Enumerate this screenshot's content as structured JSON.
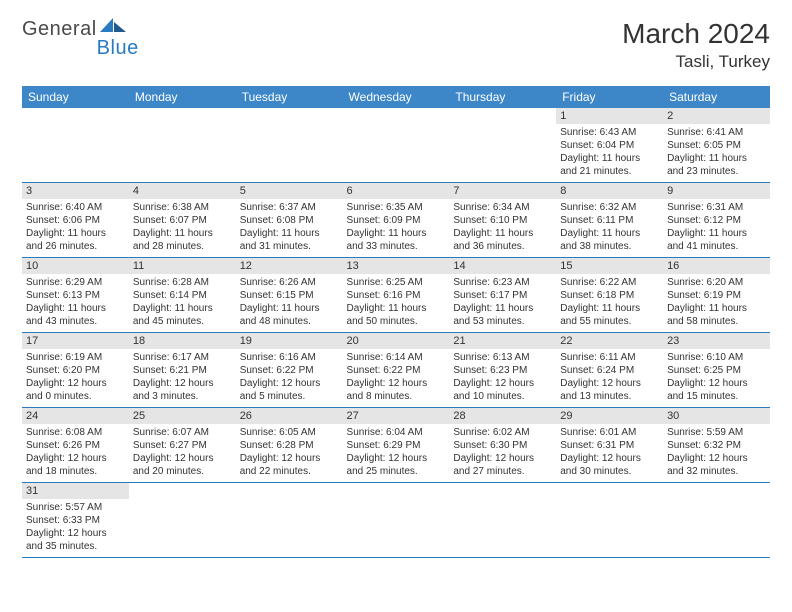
{
  "logo": {
    "part1": "General",
    "part2": "Blue"
  },
  "title": "March 2024",
  "location": "Tasli, Turkey",
  "colors": {
    "header_bg": "#3d87c9",
    "header_fg": "#ffffff",
    "daynum_bg": "#e5e5e5",
    "row_border": "#2a7ac0",
    "text": "#333333",
    "logo_gray": "#4a4a4a",
    "logo_blue": "#2a7ac0"
  },
  "typography": {
    "title_fontsize": 28,
    "location_fontsize": 17,
    "weekday_fontsize": 12,
    "daynum_fontsize": 11,
    "body_fontsize": 10
  },
  "layout": {
    "columns": 7,
    "rows": 6
  },
  "weekdays": [
    "Sunday",
    "Monday",
    "Tuesday",
    "Wednesday",
    "Thursday",
    "Friday",
    "Saturday"
  ],
  "weeks": [
    [
      null,
      null,
      null,
      null,
      null,
      {
        "n": "1",
        "sunrise": "Sunrise: 6:43 AM",
        "sunset": "Sunset: 6:04 PM",
        "day1": "Daylight: 11 hours",
        "day2": "and 21 minutes."
      },
      {
        "n": "2",
        "sunrise": "Sunrise: 6:41 AM",
        "sunset": "Sunset: 6:05 PM",
        "day1": "Daylight: 11 hours",
        "day2": "and 23 minutes."
      }
    ],
    [
      {
        "n": "3",
        "sunrise": "Sunrise: 6:40 AM",
        "sunset": "Sunset: 6:06 PM",
        "day1": "Daylight: 11 hours",
        "day2": "and 26 minutes."
      },
      {
        "n": "4",
        "sunrise": "Sunrise: 6:38 AM",
        "sunset": "Sunset: 6:07 PM",
        "day1": "Daylight: 11 hours",
        "day2": "and 28 minutes."
      },
      {
        "n": "5",
        "sunrise": "Sunrise: 6:37 AM",
        "sunset": "Sunset: 6:08 PM",
        "day1": "Daylight: 11 hours",
        "day2": "and 31 minutes."
      },
      {
        "n": "6",
        "sunrise": "Sunrise: 6:35 AM",
        "sunset": "Sunset: 6:09 PM",
        "day1": "Daylight: 11 hours",
        "day2": "and 33 minutes."
      },
      {
        "n": "7",
        "sunrise": "Sunrise: 6:34 AM",
        "sunset": "Sunset: 6:10 PM",
        "day1": "Daylight: 11 hours",
        "day2": "and 36 minutes."
      },
      {
        "n": "8",
        "sunrise": "Sunrise: 6:32 AM",
        "sunset": "Sunset: 6:11 PM",
        "day1": "Daylight: 11 hours",
        "day2": "and 38 minutes."
      },
      {
        "n": "9",
        "sunrise": "Sunrise: 6:31 AM",
        "sunset": "Sunset: 6:12 PM",
        "day1": "Daylight: 11 hours",
        "day2": "and 41 minutes."
      }
    ],
    [
      {
        "n": "10",
        "sunrise": "Sunrise: 6:29 AM",
        "sunset": "Sunset: 6:13 PM",
        "day1": "Daylight: 11 hours",
        "day2": "and 43 minutes."
      },
      {
        "n": "11",
        "sunrise": "Sunrise: 6:28 AM",
        "sunset": "Sunset: 6:14 PM",
        "day1": "Daylight: 11 hours",
        "day2": "and 45 minutes."
      },
      {
        "n": "12",
        "sunrise": "Sunrise: 6:26 AM",
        "sunset": "Sunset: 6:15 PM",
        "day1": "Daylight: 11 hours",
        "day2": "and 48 minutes."
      },
      {
        "n": "13",
        "sunrise": "Sunrise: 6:25 AM",
        "sunset": "Sunset: 6:16 PM",
        "day1": "Daylight: 11 hours",
        "day2": "and 50 minutes."
      },
      {
        "n": "14",
        "sunrise": "Sunrise: 6:23 AM",
        "sunset": "Sunset: 6:17 PM",
        "day1": "Daylight: 11 hours",
        "day2": "and 53 minutes."
      },
      {
        "n": "15",
        "sunrise": "Sunrise: 6:22 AM",
        "sunset": "Sunset: 6:18 PM",
        "day1": "Daylight: 11 hours",
        "day2": "and 55 minutes."
      },
      {
        "n": "16",
        "sunrise": "Sunrise: 6:20 AM",
        "sunset": "Sunset: 6:19 PM",
        "day1": "Daylight: 11 hours",
        "day2": "and 58 minutes."
      }
    ],
    [
      {
        "n": "17",
        "sunrise": "Sunrise: 6:19 AM",
        "sunset": "Sunset: 6:20 PM",
        "day1": "Daylight: 12 hours",
        "day2": "and 0 minutes."
      },
      {
        "n": "18",
        "sunrise": "Sunrise: 6:17 AM",
        "sunset": "Sunset: 6:21 PM",
        "day1": "Daylight: 12 hours",
        "day2": "and 3 minutes."
      },
      {
        "n": "19",
        "sunrise": "Sunrise: 6:16 AM",
        "sunset": "Sunset: 6:22 PM",
        "day1": "Daylight: 12 hours",
        "day2": "and 5 minutes."
      },
      {
        "n": "20",
        "sunrise": "Sunrise: 6:14 AM",
        "sunset": "Sunset: 6:22 PM",
        "day1": "Daylight: 12 hours",
        "day2": "and 8 minutes."
      },
      {
        "n": "21",
        "sunrise": "Sunrise: 6:13 AM",
        "sunset": "Sunset: 6:23 PM",
        "day1": "Daylight: 12 hours",
        "day2": "and 10 minutes."
      },
      {
        "n": "22",
        "sunrise": "Sunrise: 6:11 AM",
        "sunset": "Sunset: 6:24 PM",
        "day1": "Daylight: 12 hours",
        "day2": "and 13 minutes."
      },
      {
        "n": "23",
        "sunrise": "Sunrise: 6:10 AM",
        "sunset": "Sunset: 6:25 PM",
        "day1": "Daylight: 12 hours",
        "day2": "and 15 minutes."
      }
    ],
    [
      {
        "n": "24",
        "sunrise": "Sunrise: 6:08 AM",
        "sunset": "Sunset: 6:26 PM",
        "day1": "Daylight: 12 hours",
        "day2": "and 18 minutes."
      },
      {
        "n": "25",
        "sunrise": "Sunrise: 6:07 AM",
        "sunset": "Sunset: 6:27 PM",
        "day1": "Daylight: 12 hours",
        "day2": "and 20 minutes."
      },
      {
        "n": "26",
        "sunrise": "Sunrise: 6:05 AM",
        "sunset": "Sunset: 6:28 PM",
        "day1": "Daylight: 12 hours",
        "day2": "and 22 minutes."
      },
      {
        "n": "27",
        "sunrise": "Sunrise: 6:04 AM",
        "sunset": "Sunset: 6:29 PM",
        "day1": "Daylight: 12 hours",
        "day2": "and 25 minutes."
      },
      {
        "n": "28",
        "sunrise": "Sunrise: 6:02 AM",
        "sunset": "Sunset: 6:30 PM",
        "day1": "Daylight: 12 hours",
        "day2": "and 27 minutes."
      },
      {
        "n": "29",
        "sunrise": "Sunrise: 6:01 AM",
        "sunset": "Sunset: 6:31 PM",
        "day1": "Daylight: 12 hours",
        "day2": "and 30 minutes."
      },
      {
        "n": "30",
        "sunrise": "Sunrise: 5:59 AM",
        "sunset": "Sunset: 6:32 PM",
        "day1": "Daylight: 12 hours",
        "day2": "and 32 minutes."
      }
    ],
    [
      {
        "n": "31",
        "sunrise": "Sunrise: 5:57 AM",
        "sunset": "Sunset: 6:33 PM",
        "day1": "Daylight: 12 hours",
        "day2": "and 35 minutes."
      },
      null,
      null,
      null,
      null,
      null,
      null
    ]
  ]
}
